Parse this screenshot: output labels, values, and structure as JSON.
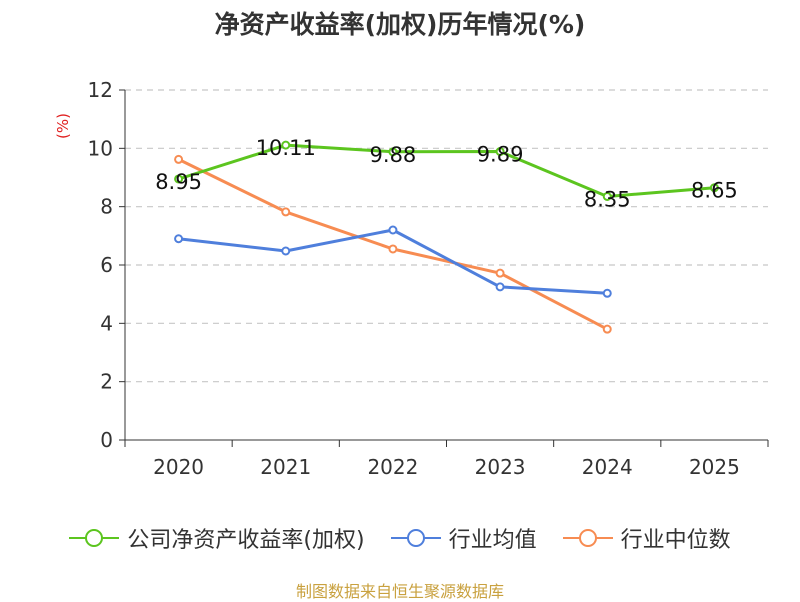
{
  "title": "净资产收益率(加权)历年情况(%)",
  "source": "制图数据来自恒生聚源数据库",
  "chart_data": {
    "type": "line",
    "title": "净资产收益率(加权)历年情况(%)",
    "ylabel": "(%)",
    "xlabel": "",
    "ylim": [
      0,
      12
    ],
    "yticks": [
      0,
      2,
      4,
      6,
      8,
      10,
      12
    ],
    "grid": true,
    "legend_position": "bottom",
    "categories": [
      "2020",
      "2021",
      "2022",
      "2023",
      "2024",
      "2025"
    ],
    "series": [
      {
        "name": "公司净资产收益率(加权)",
        "color": "#5cc51f",
        "values": [
          8.95,
          10.11,
          9.88,
          9.89,
          8.35,
          8.65
        ],
        "labels": [
          "8.95",
          "10.11",
          "9.88",
          "9.89",
          "8.35",
          "8.65"
        ]
      },
      {
        "name": "行业均值",
        "color": "#4f7fdc",
        "values": [
          6.9,
          6.48,
          7.2,
          5.25,
          5.03,
          null
        ]
      },
      {
        "name": "行业中位数",
        "color": "#f78c52",
        "values": [
          9.62,
          7.82,
          6.55,
          5.72,
          3.8,
          null
        ]
      }
    ]
  }
}
